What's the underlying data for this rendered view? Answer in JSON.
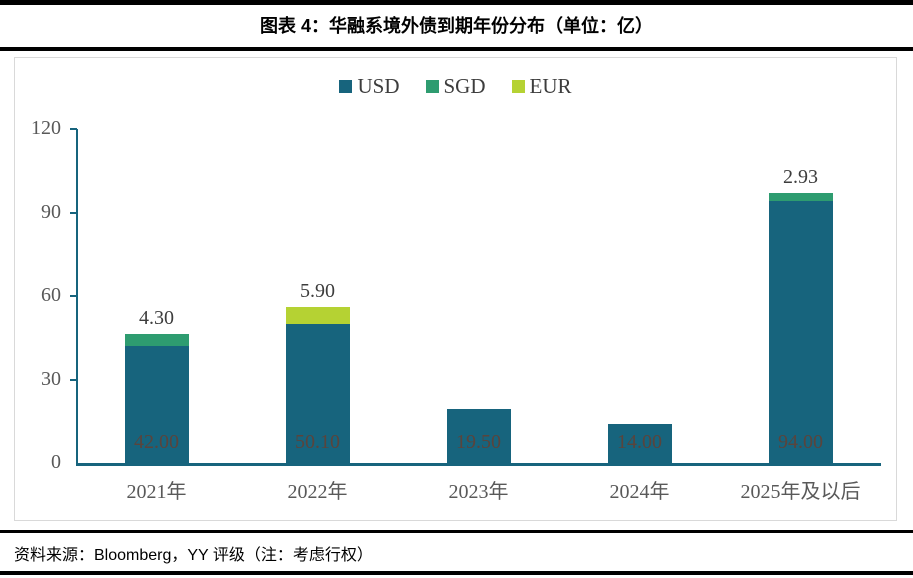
{
  "header": {
    "title": "图表 4：华融系境外债到期年份分布（单位：亿）"
  },
  "footer": {
    "source": "资料来源：Bloomberg，YY 评级（注：考虑行权）"
  },
  "colors": {
    "usd": "#17647d",
    "sgd": "#2e9c70",
    "eur": "#b5d233",
    "axis": "#17647d",
    "tick_label": "#595959",
    "inbar_label": "#5a443c",
    "top_label": "#3d3d3d",
    "chart_border": "#d9d9d9",
    "rule": "#000000"
  },
  "chart_data": {
    "type": "bar",
    "stacked": true,
    "title": "图表 4：华融系境外债到期年份分布（单位：亿）",
    "categories": [
      "2021年",
      "2022年",
      "2023年",
      "2024年",
      "2025年及以后"
    ],
    "series": [
      {
        "name": "USD",
        "color": "#17647d",
        "values": [
          42.0,
          50.1,
          19.5,
          14.0,
          94.0
        ]
      },
      {
        "name": "SGD",
        "color": "#2e9c70",
        "values": [
          4.3,
          0,
          0,
          0,
          2.93
        ]
      },
      {
        "name": "EUR",
        "color": "#b5d233",
        "values": [
          0,
          5.9,
          0,
          0,
          0
        ]
      }
    ],
    "inside_bar_labels": [
      "42.00",
      "50.10",
      "19.50",
      "14.00",
      "94.00"
    ],
    "above_bar_labels": [
      "4.30",
      "5.90",
      "",
      "",
      "2.93"
    ],
    "xlabel": "",
    "ylabel": "",
    "ylim": [
      0,
      120
    ],
    "yticks": [
      0,
      30,
      60,
      90,
      120
    ],
    "legend_position": "top",
    "grid": false
  }
}
